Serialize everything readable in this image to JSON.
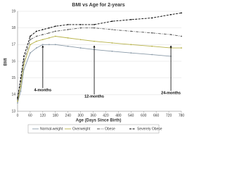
{
  "chart_data": {
    "type": "line",
    "title": "BMI vs Age for 2-years",
    "x_label": "Age (Days Since Birth)",
    "y_label": "BMI",
    "x": [
      0,
      15,
      30,
      60,
      90,
      120,
      150,
      180,
      240,
      300,
      365,
      450,
      540,
      640,
      730,
      780
    ],
    "series": [
      {
        "name": "Normal-weight",
        "color": "#8a9aa8",
        "dash": "",
        "values": [
          13.5,
          14.2,
          15.5,
          16.5,
          16.8,
          17.0,
          17.0,
          17.0,
          16.9,
          16.8,
          16.7,
          16.6,
          16.5,
          16.4,
          16.3,
          null
        ]
      },
      {
        "name": "Overweight",
        "color": "#b8b34a",
        "dash": "",
        "values": [
          13.6,
          14.5,
          15.8,
          17.0,
          17.2,
          17.3,
          17.4,
          17.5,
          17.4,
          17.3,
          17.2,
          17.1,
          17.0,
          16.9,
          16.8,
          16.8
        ]
      },
      {
        "name": "Obese",
        "color": "#555555",
        "dash": "4 1.5 1 1.5",
        "values": [
          13.7,
          14.8,
          16.0,
          17.3,
          17.5,
          17.6,
          17.7,
          17.8,
          17.9,
          18.0,
          18.0,
          17.9,
          17.8,
          17.7,
          17.6,
          17.5
        ]
      },
      {
        "name": "Severely Obese",
        "color": "#000000",
        "dash": "3 1.5",
        "values": [
          13.8,
          15.0,
          16.3,
          17.5,
          17.8,
          17.9,
          18.0,
          18.1,
          18.2,
          18.2,
          18.2,
          18.4,
          18.5,
          18.6,
          18.8,
          18.9
        ]
      }
    ],
    "xlim": [
      0,
      780
    ],
    "xticks": [
      0,
      60,
      120,
      180,
      240,
      300,
      360,
      420,
      480,
      540,
      600,
      660,
      720,
      780
    ],
    "ylim": [
      13,
      19
    ],
    "yticks": [
      13,
      14,
      15,
      16,
      17,
      18,
      19
    ],
    "grid": true,
    "annotations": [
      {
        "text": "4-months",
        "x": 120
      },
      {
        "text": "12-months",
        "x": 365
      },
      {
        "text": "24-months",
        "x": 730
      }
    ],
    "legend": "bottom"
  }
}
